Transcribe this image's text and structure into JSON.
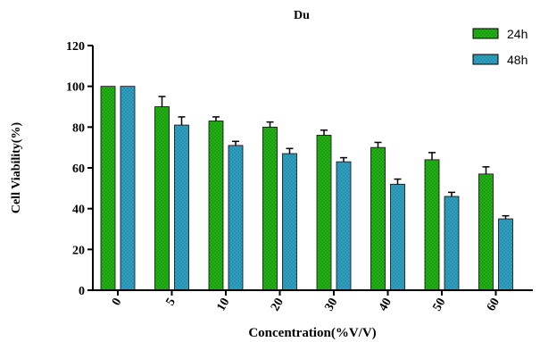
{
  "chart_data": {
    "type": "bar",
    "title": "Du",
    "xlabel": "Concentration(%V/V)",
    "ylabel": "Cell Viability(%)",
    "categories": [
      "0",
      "5",
      "10",
      "20",
      "30",
      "40",
      "50",
      "60"
    ],
    "series": [
      {
        "name": "24h",
        "color": "#22b014",
        "values": [
          100,
          90,
          83,
          80,
          76,
          70,
          64,
          57
        ],
        "errors": [
          0,
          5,
          2,
          2.5,
          2.5,
          2.5,
          3.5,
          3.5
        ]
      },
      {
        "name": "48h",
        "color": "#2fa0c0",
        "values": [
          100,
          81,
          71,
          67,
          63,
          52,
          46,
          35
        ],
        "errors": [
          0,
          4,
          2,
          2.5,
          2,
          2.5,
          2,
          1.5
        ]
      }
    ],
    "ylim": [
      0,
      120
    ],
    "yticks": [
      "0",
      "20",
      "40",
      "60",
      "80",
      "100",
      "120"
    ],
    "legend_position": "top-right",
    "grid": false
  }
}
